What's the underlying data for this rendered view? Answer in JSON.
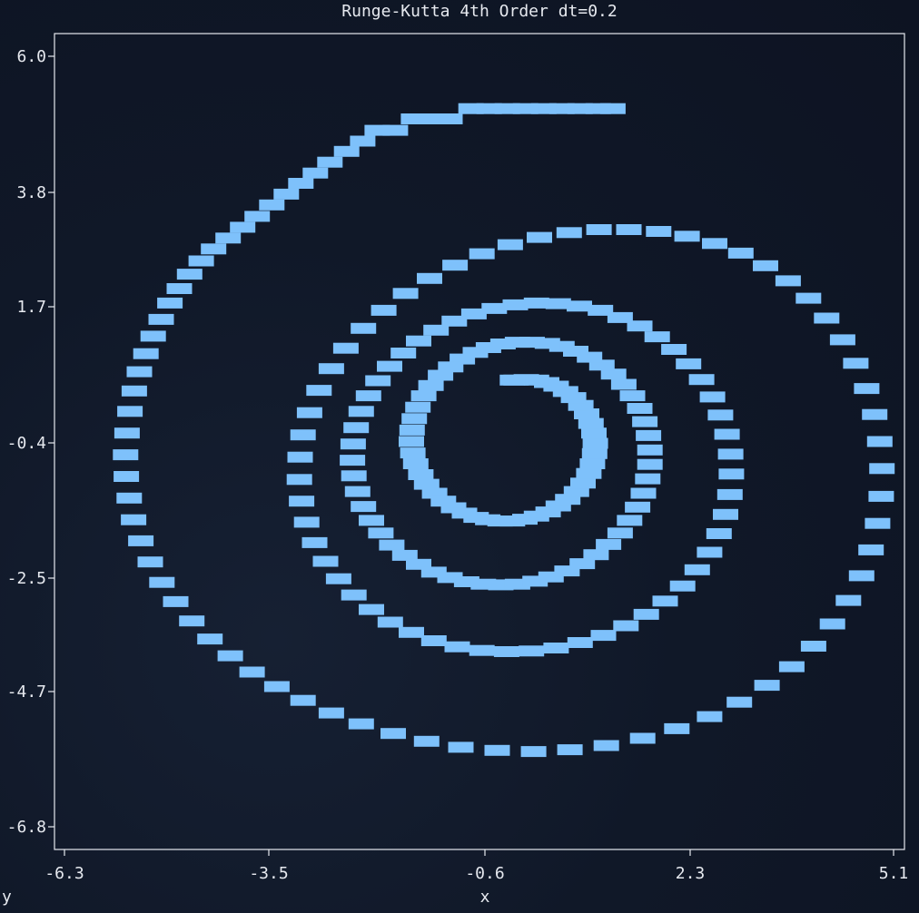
{
  "chart_data": {
    "type": "scatter",
    "title": "Runge-Kutta 4th Order dt=0.2",
    "xlabel": "x",
    "ylabel": "y",
    "xlim": [
      -6.3,
      5.1
    ],
    "ylim": [
      -6.8,
      6.0
    ],
    "xticks": [
      "-6.3",
      "-3.5",
      "-0.6",
      "2.3",
      "5.1"
    ],
    "yticks": [
      "6.0",
      "3.8",
      "1.7",
      "-0.4",
      "-2.5",
      "-4.7",
      "-6.8"
    ],
    "marker": "block",
    "color": "#7ec1fb",
    "series": [
      {
        "points": [
          [
            1.24,
            5.13
          ],
          [
            1.04,
            5.13
          ],
          [
            0.79,
            5.13
          ],
          [
            0.54,
            5.13
          ],
          [
            0.29,
            5.13
          ],
          [
            0.04,
            5.13
          ],
          [
            -0.21,
            5.13
          ],
          [
            -0.46,
            5.13
          ],
          [
            -0.71,
            5.13
          ],
          [
            -1.0,
            4.96
          ],
          [
            -1.25,
            4.96
          ],
          [
            -1.5,
            4.96
          ],
          [
            -1.75,
            4.77
          ],
          [
            -2.0,
            4.77
          ],
          [
            -2.2,
            4.59
          ],
          [
            -2.42,
            4.42
          ],
          [
            -2.65,
            4.24
          ],
          [
            -2.85,
            4.06
          ],
          [
            -3.05,
            3.89
          ],
          [
            -3.25,
            3.71
          ],
          [
            -3.45,
            3.53
          ],
          [
            -3.65,
            3.34
          ],
          [
            -3.85,
            3.16
          ],
          [
            -4.05,
            2.98
          ],
          [
            -4.25,
            2.8
          ],
          [
            -4.42,
            2.6
          ],
          [
            -4.58,
            2.38
          ],
          [
            -4.72,
            2.14
          ],
          [
            -4.85,
            1.9
          ],
          [
            -4.97,
            1.63
          ],
          [
            -5.08,
            1.35
          ],
          [
            -5.18,
            1.06
          ],
          [
            -5.27,
            0.76
          ],
          [
            -5.34,
            0.44
          ],
          [
            -5.4,
            0.1
          ],
          [
            -5.44,
            -0.26
          ],
          [
            -5.46,
            -0.62
          ],
          [
            -5.45,
            -0.98
          ],
          [
            -5.41,
            -1.34
          ],
          [
            -5.35,
            -1.7
          ],
          [
            -5.25,
            -2.05
          ],
          [
            -5.12,
            -2.4
          ],
          [
            -4.96,
            -2.74
          ],
          [
            -4.77,
            -3.06
          ],
          [
            -4.55,
            -3.38
          ],
          [
            -4.3,
            -3.68
          ],
          [
            -4.02,
            -3.96
          ],
          [
            -3.72,
            -4.23
          ],
          [
            -3.38,
            -4.47
          ],
          [
            -3.02,
            -4.7
          ],
          [
            -2.63,
            -4.91
          ],
          [
            -2.22,
            -5.09
          ],
          [
            -1.78,
            -5.25
          ],
          [
            -1.32,
            -5.38
          ],
          [
            -0.85,
            -5.48
          ],
          [
            -0.35,
            -5.53
          ],
          [
            0.15,
            -5.55
          ],
          [
            0.65,
            -5.52
          ],
          [
            1.15,
            -5.45
          ],
          [
            1.65,
            -5.33
          ],
          [
            2.12,
            -5.17
          ],
          [
            2.57,
            -4.97
          ],
          [
            2.98,
            -4.73
          ],
          [
            3.36,
            -4.45
          ],
          [
            3.7,
            -4.14
          ],
          [
            4.0,
            -3.8
          ],
          [
            4.26,
            -3.43
          ],
          [
            4.48,
            -3.04
          ],
          [
            4.66,
            -2.63
          ],
          [
            4.79,
            -2.2
          ],
          [
            4.88,
            -1.76
          ],
          [
            4.93,
            -1.31
          ],
          [
            4.94,
            -0.85
          ],
          [
            4.91,
            -0.4
          ],
          [
            4.84,
            0.05
          ],
          [
            4.73,
            0.48
          ],
          [
            4.58,
            0.9
          ],
          [
            4.4,
            1.29
          ],
          [
            4.18,
            1.65
          ],
          [
            3.93,
            1.98
          ],
          [
            3.65,
            2.27
          ],
          [
            3.34,
            2.52
          ],
          [
            3.0,
            2.73
          ],
          [
            2.64,
            2.89
          ],
          [
            2.26,
            3.01
          ],
          [
            1.87,
            3.09
          ],
          [
            1.46,
            3.12
          ],
          [
            1.05,
            3.12
          ],
          [
            0.64,
            3.07
          ],
          [
            0.23,
            2.99
          ],
          [
            -0.17,
            2.87
          ],
          [
            -0.56,
            2.72
          ],
          [
            -0.93,
            2.53
          ],
          [
            -1.28,
            2.31
          ],
          [
            -1.61,
            2.06
          ],
          [
            -1.91,
            1.78
          ],
          [
            -2.19,
            1.48
          ],
          [
            -2.43,
            1.15
          ],
          [
            -2.63,
            0.81
          ],
          [
            -2.8,
            0.45
          ],
          [
            -2.93,
            0.08
          ],
          [
            -3.02,
            -0.29
          ],
          [
            -3.06,
            -0.66
          ],
          [
            -3.07,
            -1.03
          ],
          [
            -3.04,
            -1.39
          ],
          [
            -2.97,
            -1.74
          ],
          [
            -2.86,
            -2.08
          ],
          [
            -2.71,
            -2.39
          ],
          [
            -2.53,
            -2.68
          ],
          [
            -2.32,
            -2.95
          ],
          [
            -2.08,
            -3.19
          ],
          [
            -1.82,
            -3.4
          ],
          [
            -1.53,
            -3.57
          ],
          [
            -1.22,
            -3.71
          ],
          [
            -0.9,
            -3.81
          ],
          [
            -0.56,
            -3.87
          ],
          [
            -0.22,
            -3.89
          ],
          [
            0.12,
            -3.88
          ],
          [
            0.46,
            -3.83
          ],
          [
            0.79,
            -3.74
          ],
          [
            1.11,
            -3.62
          ],
          [
            1.42,
            -3.46
          ],
          [
            1.7,
            -3.27
          ],
          [
            1.96,
            -3.05
          ],
          [
            2.2,
            -2.8
          ],
          [
            2.4,
            -2.53
          ],
          [
            2.57,
            -2.24
          ],
          [
            2.7,
            -1.93
          ],
          [
            2.79,
            -1.61
          ],
          [
            2.85,
            -1.28
          ],
          [
            2.87,
            -0.94
          ],
          [
            2.86,
            -0.61
          ],
          [
            2.81,
            -0.28
          ],
          [
            2.72,
            0.04
          ],
          [
            2.61,
            0.34
          ],
          [
            2.46,
            0.63
          ],
          [
            2.28,
            0.89
          ],
          [
            2.08,
            1.13
          ],
          [
            1.85,
            1.34
          ],
          [
            1.61,
            1.52
          ],
          [
            1.34,
            1.66
          ],
          [
            1.07,
            1.78
          ],
          [
            0.78,
            1.85
          ],
          [
            0.49,
            1.89
          ],
          [
            0.19,
            1.9
          ],
          [
            -0.1,
            1.87
          ],
          [
            -0.39,
            1.81
          ],
          [
            -0.67,
            1.72
          ],
          [
            -0.94,
            1.6
          ],
          [
            -1.19,
            1.45
          ],
          [
            -1.43,
            1.27
          ],
          [
            -1.64,
            1.07
          ],
          [
            -1.83,
            0.85
          ],
          [
            -1.99,
            0.61
          ],
          [
            -2.12,
            0.36
          ],
          [
            -2.22,
            0.1
          ],
          [
            -2.29,
            -0.17
          ],
          [
            -2.33,
            -0.44
          ],
          [
            -2.34,
            -0.71
          ],
          [
            -2.32,
            -0.97
          ],
          [
            -2.27,
            -1.23
          ],
          [
            -2.19,
            -1.48
          ],
          [
            -2.08,
            -1.71
          ],
          [
            -1.95,
            -1.92
          ],
          [
            -1.8,
            -2.12
          ],
          [
            -1.62,
            -2.29
          ],
          [
            -1.43,
            -2.44
          ],
          [
            -1.22,
            -2.57
          ],
          [
            -1.0,
            -2.66
          ],
          [
            -0.77,
            -2.73
          ],
          [
            -0.54,
            -2.77
          ],
          [
            -0.3,
            -2.78
          ],
          [
            -0.07,
            -2.77
          ],
          [
            0.17,
            -2.72
          ],
          [
            0.39,
            -2.65
          ],
          [
            0.61,
            -2.55
          ],
          [
            0.82,
            -2.43
          ],
          [
            1.01,
            -2.28
          ],
          [
            1.18,
            -2.11
          ],
          [
            1.34,
            -1.92
          ],
          [
            1.47,
            -1.71
          ],
          [
            1.58,
            -1.49
          ],
          [
            1.66,
            -1.26
          ],
          [
            1.72,
            -1.02
          ],
          [
            1.75,
            -0.78
          ],
          [
            1.75,
            -0.54
          ],
          [
            1.73,
            -0.3
          ],
          [
            1.68,
            -0.07
          ],
          [
            1.61,
            0.15
          ],
          [
            1.51,
            0.36
          ],
          [
            1.39,
            0.55
          ],
          [
            1.25,
            0.72
          ],
          [
            1.09,
            0.87
          ],
          [
            0.92,
            1.0
          ],
          [
            0.73,
            1.1
          ],
          [
            0.54,
            1.18
          ],
          [
            0.34,
            1.23
          ],
          [
            0.13,
            1.25
          ],
          [
            -0.07,
            1.25
          ],
          [
            -0.27,
            1.22
          ],
          [
            -0.47,
            1.16
          ],
          [
            -0.65,
            1.08
          ],
          [
            -0.83,
            0.97
          ],
          [
            -0.99,
            0.84
          ],
          [
            -1.13,
            0.7
          ],
          [
            -1.26,
            0.53
          ],
          [
            -1.36,
            0.36
          ],
          [
            -1.44,
            0.17
          ],
          [
            -1.49,
            -0.02
          ],
          [
            -1.52,
            -0.21
          ],
          [
            -1.53,
            -0.4
          ],
          [
            -1.51,
            -0.59
          ],
          [
            -1.47,
            -0.77
          ],
          [
            -1.4,
            -0.95
          ],
          [
            -1.32,
            -1.11
          ],
          [
            -1.21,
            -1.26
          ],
          [
            -1.09,
            -1.39
          ],
          [
            -0.95,
            -1.5
          ],
          [
            -0.8,
            -1.59
          ],
          [
            -0.64,
            -1.66
          ],
          [
            -0.48,
            -1.7
          ],
          [
            -0.31,
            -1.72
          ],
          [
            -0.14,
            -1.72
          ],
          [
            0.03,
            -1.69
          ],
          [
            0.19,
            -1.64
          ],
          [
            0.35,
            -1.57
          ],
          [
            0.49,
            -1.47
          ],
          [
            0.62,
            -1.36
          ],
          [
            0.74,
            -1.23
          ],
          [
            0.83,
            -1.09
          ],
          [
            0.91,
            -0.93
          ],
          [
            0.96,
            -0.77
          ],
          [
            0.99,
            -0.6
          ],
          [
            1.0,
            -0.43
          ],
          [
            0.98,
            -0.26
          ],
          [
            0.94,
            -0.1
          ],
          [
            0.88,
            0.06
          ],
          [
            0.8,
            0.2
          ],
          [
            0.7,
            0.33
          ],
          [
            0.59,
            0.43
          ],
          [
            0.46,
            0.52
          ],
          [
            0.33,
            0.58
          ],
          [
            0.19,
            0.62
          ],
          [
            0.05,
            0.63
          ],
          [
            -0.09,
            0.62
          ],
          [
            -0.14,
            0.62
          ]
        ]
      }
    ]
  }
}
